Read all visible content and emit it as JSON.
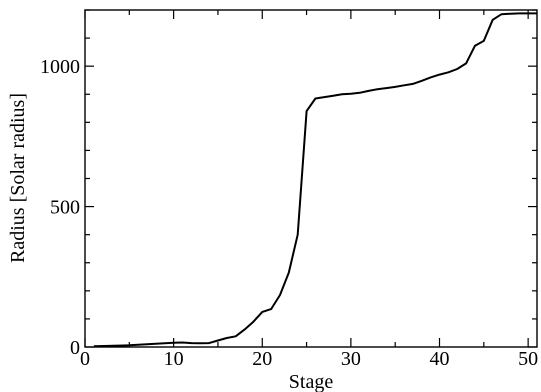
{
  "chart_data": {
    "type": "line",
    "xlabel": "Stage",
    "ylabel": "Radius [Solar radius]",
    "xlim": [
      0,
      51
    ],
    "ylim": [
      0,
      1200
    ],
    "x_ticks": [
      0,
      10,
      20,
      30,
      40,
      50
    ],
    "x_tick_labels": [
      "0",
      "10",
      "20",
      "30",
      "40",
      "50"
    ],
    "y_ticks": [
      0,
      500,
      1000
    ],
    "y_tick_labels": [
      "0",
      "500",
      "1000"
    ],
    "grid": false,
    "series": [
      {
        "color": "#000000",
        "x": [
          1,
          5,
          10,
          11,
          12,
          13,
          14,
          15,
          16,
          17,
          18,
          19,
          20,
          21,
          22,
          23,
          24,
          25,
          26,
          27,
          28,
          29,
          30,
          31,
          32,
          33,
          34,
          35,
          36,
          37,
          38,
          39,
          40,
          41,
          42,
          43,
          44,
          45,
          46,
          47,
          48,
          49,
          50,
          51
        ],
        "y": [
          3,
          6,
          15,
          16,
          14,
          13,
          14,
          23,
          32,
          38,
          62,
          90,
          125,
          135,
          185,
          265,
          400,
          840,
          885,
          890,
          895,
          900,
          902,
          905,
          912,
          918,
          922,
          926,
          932,
          937,
          948,
          960,
          970,
          978,
          990,
          1010,
          1073,
          1090,
          1165,
          1185,
          1187,
          1188,
          1188,
          1188
        ]
      }
    ]
  }
}
